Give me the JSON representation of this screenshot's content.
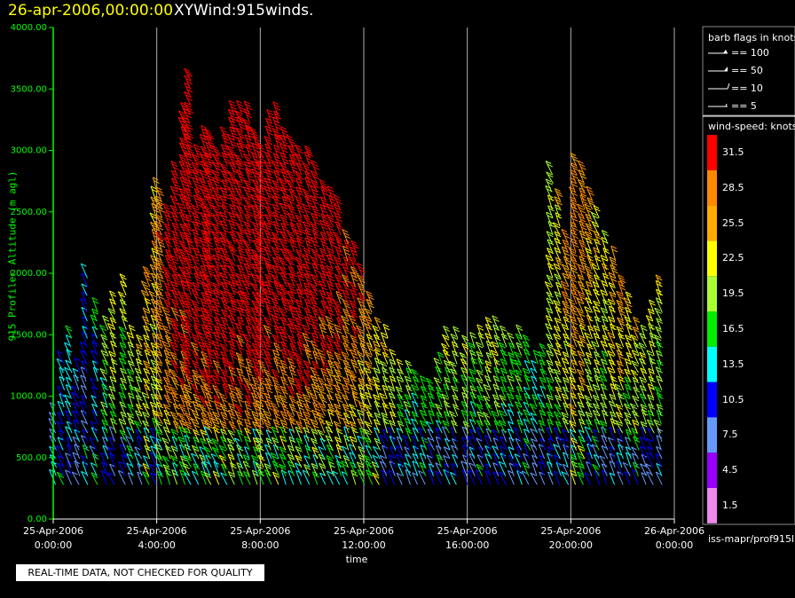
{
  "header": {
    "date_title": "26-apr-2006,00:00:00",
    "product_title": "XYWind:915winds."
  },
  "footer": {
    "disclaimer": "REAL-TIME DATA, NOT CHECKED FOR QUALITY",
    "source": "iss-mapr/prof915l"
  },
  "legend": {
    "barb_title": "barb flags in knots",
    "barbs": [
      {
        "label": "== 100",
        "knots": 100
      },
      {
        "label": "== 50",
        "knots": 50
      },
      {
        "label": "== 10",
        "knots": 10
      },
      {
        "label": "== 5",
        "knots": 5
      }
    ],
    "speed_title": "wind-speed: knots",
    "speed_bins": [
      {
        "label": "31.5",
        "color": "#ff0000"
      },
      {
        "label": "28.5",
        "color": "#ff8800"
      },
      {
        "label": "25.5",
        "color": "#ffaa00"
      },
      {
        "label": "22.5",
        "color": "#ffff00"
      },
      {
        "label": "19.5",
        "color": "#aaff33"
      },
      {
        "label": "16.5",
        "color": "#00ee00"
      },
      {
        "label": "13.5",
        "color": "#00ffff"
      },
      {
        "label": "10.5",
        "color": "#0000ff"
      },
      {
        "label": "7.5",
        "color": "#6699ff"
      },
      {
        "label": "4.5",
        "color": "#9900ff"
      },
      {
        "label": "1.5",
        "color": "#ee88ee"
      }
    ]
  },
  "chart_data": {
    "type": "scatter",
    "subtype": "wind-barb time-height",
    "xlabel": "time",
    "ylabel": "915 Profiler Altitude (m agl)",
    "xlim_hours": [
      0,
      24
    ],
    "ylim": [
      0,
      4000
    ],
    "yticks": [
      "0.00",
      "500.00",
      "1000.00",
      "1500.00",
      "2000.00",
      "2500.00",
      "3000.00",
      "3500.00",
      "4000.00"
    ],
    "xticks": [
      {
        "date": "25-Apr-2006",
        "time": "0:00:00"
      },
      {
        "date": "25-Apr-2006",
        "time": "4:00:00"
      },
      {
        "date": "25-Apr-2006",
        "time": "8:00:00"
      },
      {
        "date": "25-Apr-2006",
        "time": "12:00:00"
      },
      {
        "date": "25-Apr-2006",
        "time": "16:00:00"
      },
      {
        "date": "25-Apr-2006",
        "time": "20:00:00"
      },
      {
        "date": "26-Apr-2006",
        "time": "0:00:00"
      }
    ],
    "grid": "vertical",
    "axis_color": "#00ff00",
    "profiles": [
      {
        "t": 0.1,
        "top": 900,
        "speed": 10
      },
      {
        "t": 0.4,
        "top": 1300,
        "speed": 14
      },
      {
        "t": 0.7,
        "top": 1500,
        "speed": 16
      },
      {
        "t": 1.0,
        "top": 1200,
        "speed": 12
      },
      {
        "t": 1.3,
        "top": 2000,
        "speed": 11
      },
      {
        "t": 1.7,
        "top": 1700,
        "speed": 14
      },
      {
        "t": 2.1,
        "top": 1600,
        "speed": 19
      },
      {
        "t": 2.4,
        "top": 1800,
        "speed": 22
      },
      {
        "t": 2.8,
        "top": 1900,
        "speed": 20
      },
      {
        "t": 3.1,
        "top": 1500,
        "speed": 22
      },
      {
        "t": 3.4,
        "top": 1400,
        "speed": 24
      },
      {
        "t": 3.7,
        "top": 2000,
        "speed": 26
      },
      {
        "t": 4.0,
        "top": 2700,
        "speed": 24
      },
      {
        "t": 4.2,
        "top": 2600,
        "speed": 27
      },
      {
        "t": 4.5,
        "top": 2500,
        "speed": 30
      },
      {
        "t": 4.8,
        "top": 2800,
        "speed": 32
      },
      {
        "t": 5.1,
        "top": 3300,
        "speed": 32
      },
      {
        "t": 5.3,
        "top": 3600,
        "speed": 33
      },
      {
        "t": 5.6,
        "top": 3000,
        "speed": 34
      },
      {
        "t": 5.9,
        "top": 3100,
        "speed": 34
      },
      {
        "t": 6.1,
        "top": 3100,
        "speed": 35
      },
      {
        "t": 6.4,
        "top": 3000,
        "speed": 35
      },
      {
        "t": 6.7,
        "top": 3100,
        "speed": 34
      },
      {
        "t": 7.0,
        "top": 3300,
        "speed": 35
      },
      {
        "t": 7.3,
        "top": 3350,
        "speed": 34
      },
      {
        "t": 7.6,
        "top": 3300,
        "speed": 35
      },
      {
        "t": 7.9,
        "top": 3100,
        "speed": 34
      },
      {
        "t": 8.1,
        "top": 3000,
        "speed": 34
      },
      {
        "t": 8.4,
        "top": 3250,
        "speed": 33
      },
      {
        "t": 8.7,
        "top": 3300,
        "speed": 34
      },
      {
        "t": 9.0,
        "top": 3100,
        "speed": 34
      },
      {
        "t": 9.3,
        "top": 3050,
        "speed": 34
      },
      {
        "t": 9.6,
        "top": 3000,
        "speed": 33
      },
      {
        "t": 9.9,
        "top": 2950,
        "speed": 33
      },
      {
        "t": 10.2,
        "top": 2800,
        "speed": 32
      },
      {
        "t": 10.5,
        "top": 2700,
        "speed": 32
      },
      {
        "t": 10.8,
        "top": 2650,
        "speed": 31
      },
      {
        "t": 11.1,
        "top": 2550,
        "speed": 31
      },
      {
        "t": 11.4,
        "top": 2300,
        "speed": 30
      },
      {
        "t": 11.7,
        "top": 2200,
        "speed": 30
      },
      {
        "t": 12.0,
        "top": 2000,
        "speed": 28
      },
      {
        "t": 12.3,
        "top": 1800,
        "speed": 27
      },
      {
        "t": 12.6,
        "top": 1600,
        "speed": 26
      },
      {
        "t": 12.9,
        "top": 1500,
        "speed": 25
      },
      {
        "t": 13.2,
        "top": 1300,
        "speed": 23
      },
      {
        "t": 13.5,
        "top": 1200,
        "speed": 22
      },
      {
        "t": 13.8,
        "top": 1200,
        "speed": 20
      },
      {
        "t": 14.1,
        "top": 1150,
        "speed": 19
      },
      {
        "t": 14.4,
        "top": 1100,
        "speed": 18
      },
      {
        "t": 14.7,
        "top": 1100,
        "speed": 18
      },
      {
        "t": 15.0,
        "top": 1300,
        "speed": 21
      },
      {
        "t": 15.3,
        "top": 1500,
        "speed": 22
      },
      {
        "t": 15.6,
        "top": 1500,
        "speed": 22
      },
      {
        "t": 16.0,
        "top": 1400,
        "speed": 21
      },
      {
        "t": 16.3,
        "top": 1450,
        "speed": 20
      },
      {
        "t": 16.6,
        "top": 1500,
        "speed": 21
      },
      {
        "t": 16.9,
        "top": 1600,
        "speed": 22
      },
      {
        "t": 17.2,
        "top": 1550,
        "speed": 21
      },
      {
        "t": 17.5,
        "top": 1500,
        "speed": 20
      },
      {
        "t": 17.8,
        "top": 1450,
        "speed": 19
      },
      {
        "t": 18.1,
        "top": 1500,
        "speed": 19
      },
      {
        "t": 18.4,
        "top": 1400,
        "speed": 18
      },
      {
        "t": 18.7,
        "top": 1300,
        "speed": 17
      },
      {
        "t": 19.0,
        "top": 1350,
        "speed": 18
      },
      {
        "t": 19.3,
        "top": 2850,
        "speed": 20
      },
      {
        "t": 19.6,
        "top": 2600,
        "speed": 22
      },
      {
        "t": 19.9,
        "top": 2300,
        "speed": 25
      },
      {
        "t": 20.2,
        "top": 2900,
        "speed": 27
      },
      {
        "t": 20.5,
        "top": 2800,
        "speed": 26
      },
      {
        "t": 20.8,
        "top": 2600,
        "speed": 24
      },
      {
        "t": 21.1,
        "top": 2450,
        "speed": 22
      },
      {
        "t": 21.4,
        "top": 2300,
        "speed": 22
      },
      {
        "t": 21.7,
        "top": 2100,
        "speed": 24
      },
      {
        "t": 22.0,
        "top": 1900,
        "speed": 25
      },
      {
        "t": 22.3,
        "top": 1750,
        "speed": 23
      },
      {
        "t": 22.6,
        "top": 1600,
        "speed": 24
      },
      {
        "t": 22.9,
        "top": 1500,
        "speed": 22
      },
      {
        "t": 23.2,
        "top": 1700,
        "speed": 23
      },
      {
        "t": 23.5,
        "top": 1900,
        "speed": 21
      }
    ],
    "bottom_gate_m": 280,
    "gate_spacing_m": 70
  }
}
